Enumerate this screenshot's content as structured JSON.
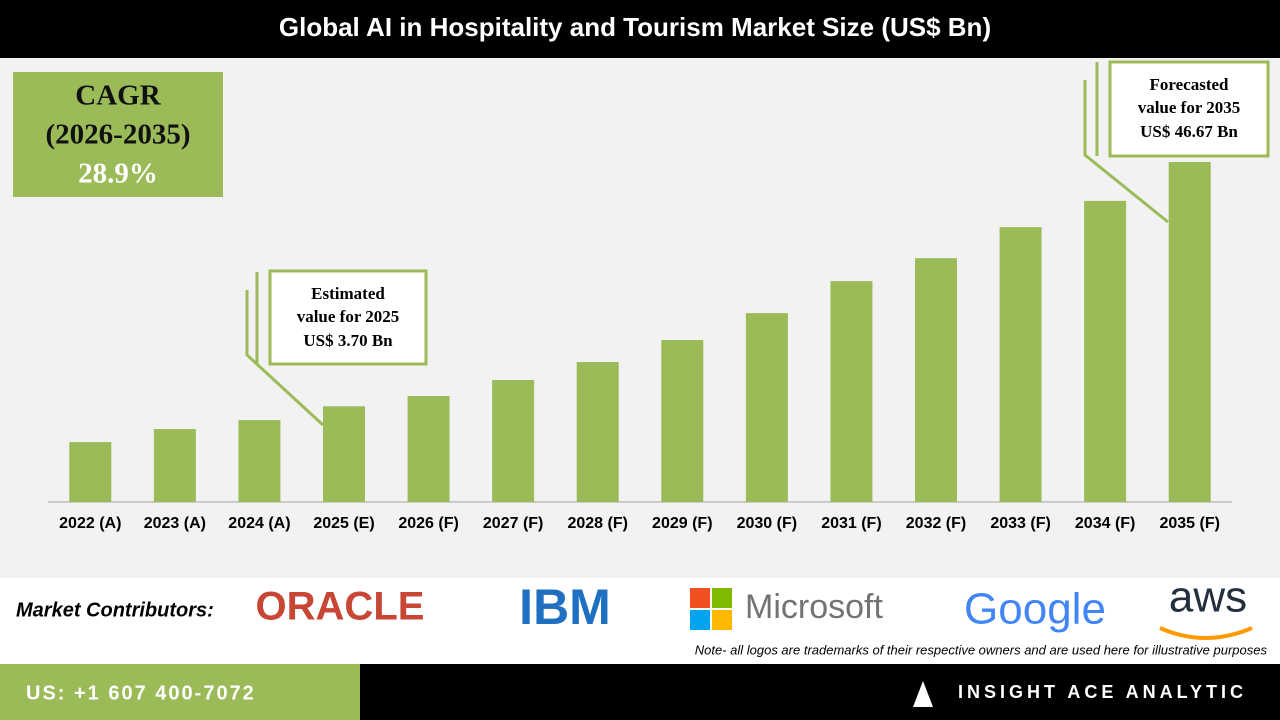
{
  "chart_data": {
    "type": "bar",
    "title": "Global AI in Hospitality and Tourism Market Size (US$ Bn)",
    "categories": [
      "2022 (A)",
      "2023 (A)",
      "2024 (A)",
      "2025 (E)",
      "2026 (F)",
      "2027 (F)",
      "2028 (F)",
      "2029 (F)",
      "2030 (F)",
      "2031 (F)",
      "2032 (F)",
      "2033 (F)",
      "2034 (F)",
      "2035 (F)"
    ],
    "values": [
      1.45,
      2.15,
      2.71,
      3.7,
      4.54,
      6.01,
      7.91,
      10.6,
      14.4,
      19.7,
      24.0,
      30.5,
      36.6,
      46.67
    ],
    "color": "#9bbb59",
    "scale": "sqrt",
    "annotations": [
      {
        "lines": [
          "Estimated",
          "value for 2025",
          "US$ 3.70 Bn"
        ]
      },
      {
        "lines": [
          "Forecasted",
          "value for 2035",
          "US$ 46.67 Bn"
        ]
      }
    ]
  },
  "cagr": {
    "lines": [
      "CAGR",
      "(2026-2035)",
      "28.9%"
    ]
  },
  "contributors": {
    "label": "Market Contributors:",
    "logos": [
      "ORACLE",
      "IBM",
      "Microsoft",
      "Google",
      "aws"
    ],
    "note": "Note- all logos are trademarks of their respective owners and are used here for illustrative purposes"
  },
  "footer": {
    "phone": "US: +1 607 400-7072",
    "brand": "INSIGHT ACE ANALYTIC"
  }
}
